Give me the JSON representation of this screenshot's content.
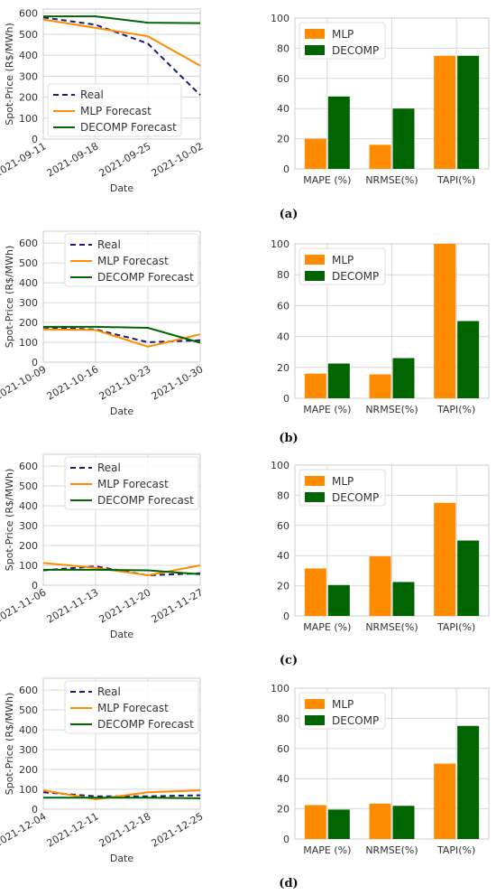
{
  "figure": {
    "colors": {
      "real": "#1a1a7a",
      "mlp": "#ff8c00",
      "decomp": "#006400",
      "grid": "#d9d9d9",
      "axis": "#cccccc",
      "text": "#333333"
    },
    "panels": [
      {
        "label": "(a)"
      },
      {
        "label": "(b)"
      },
      {
        "label": "(c)"
      },
      {
        "label": "(d)"
      }
    ]
  },
  "chart_data": [
    {
      "type": "line",
      "panel": "(a)",
      "ylabel": "Spot-Price (R$/MWh)",
      "xlabel": "Date",
      "x": [
        "2021-09-11",
        "2021-09-18",
        "2021-09-25",
        "2021-10-02"
      ],
      "ylim": [
        0,
        620
      ],
      "yticks": [
        0,
        100,
        200,
        300,
        400,
        500,
        600
      ],
      "legend_position": "lower-left",
      "series": [
        {
          "name": "Real",
          "style": "dashed",
          "color": "#1a1a7a",
          "values": [
            580,
            545,
            455,
            210
          ]
        },
        {
          "name": "MLP Forecast",
          "style": "solid",
          "color": "#ff8c00",
          "values": [
            570,
            530,
            490,
            350
          ]
        },
        {
          "name": "DECOMP Forecast",
          "style": "solid",
          "color": "#006400",
          "values": [
            585,
            585,
            555,
            553
          ]
        }
      ]
    },
    {
      "type": "bar",
      "panel": "(a)",
      "categories": [
        "MAPE (%)",
        "NRMSE(%)",
        "TAPI(%)"
      ],
      "ylim": [
        0,
        100
      ],
      "yticks": [
        0,
        20,
        40,
        60,
        80,
        100
      ],
      "legend_position": "upper-left",
      "series": [
        {
          "name": "MLP",
          "color": "#ff8c00",
          "values": [
            20,
            16,
            75
          ]
        },
        {
          "name": "DECOMP",
          "color": "#006400",
          "values": [
            48,
            40,
            75
          ]
        }
      ]
    },
    {
      "type": "line",
      "panel": "(b)",
      "ylabel": "Spot-Price (R$/MWh)",
      "xlabel": "Date",
      "x": [
        "2021-10-09",
        "2021-10-16",
        "2021-10-23",
        "2021-10-30"
      ],
      "ylim": [
        0,
        660
      ],
      "yticks": [
        0,
        100,
        200,
        300,
        400,
        500,
        600
      ],
      "legend_position": "upper-center",
      "series": [
        {
          "name": "Real",
          "style": "dashed",
          "color": "#1a1a7a",
          "values": [
            175,
            165,
            100,
            110
          ]
        },
        {
          "name": "MLP Forecast",
          "style": "solid",
          "color": "#ff8c00",
          "values": [
            165,
            162,
            78,
            140
          ]
        },
        {
          "name": "DECOMP Forecast",
          "style": "solid",
          "color": "#006400",
          "values": [
            178,
            178,
            173,
            98
          ]
        }
      ]
    },
    {
      "type": "bar",
      "panel": "(b)",
      "categories": [
        "MAPE (%)",
        "NRMSE(%)",
        "TAPI(%)"
      ],
      "ylim": [
        0,
        100
      ],
      "yticks": [
        0,
        20,
        40,
        60,
        80,
        100
      ],
      "legend_position": "upper-left",
      "series": [
        {
          "name": "MLP",
          "color": "#ff8c00",
          "values": [
            16,
            15.5,
            100
          ]
        },
        {
          "name": "DECOMP",
          "color": "#006400",
          "values": [
            22.5,
            26,
            50
          ]
        }
      ]
    },
    {
      "type": "line",
      "panel": "(c)",
      "ylabel": "Spot-Price (R$/MWh)",
      "xlabel": "Date",
      "x": [
        "2021-11-06",
        "2021-11-13",
        "2021-11-20",
        "2021-11-27"
      ],
      "ylim": [
        0,
        660
      ],
      "yticks": [
        0,
        100,
        200,
        300,
        400,
        500,
        600
      ],
      "legend_position": "upper-center",
      "series": [
        {
          "name": "Real",
          "style": "dashed",
          "color": "#1a1a7a",
          "values": [
            75,
            95,
            50,
            60
          ]
        },
        {
          "name": "MLP Forecast",
          "style": "solid",
          "color": "#ff8c00",
          "values": [
            112,
            88,
            50,
            100
          ]
        },
        {
          "name": "DECOMP Forecast",
          "style": "solid",
          "color": "#006400",
          "values": [
            78,
            78,
            75,
            55
          ]
        }
      ]
    },
    {
      "type": "bar",
      "panel": "(c)",
      "categories": [
        "MAPE (%)",
        "NRMSE(%)",
        "TAPI(%)"
      ],
      "ylim": [
        0,
        100
      ],
      "yticks": [
        0,
        20,
        40,
        60,
        80,
        100
      ],
      "legend_position": "upper-left",
      "series": [
        {
          "name": "MLP",
          "color": "#ff8c00",
          "values": [
            31.5,
            39.5,
            75
          ]
        },
        {
          "name": "DECOMP",
          "color": "#006400",
          "values": [
            20.5,
            22.5,
            50
          ]
        }
      ]
    },
    {
      "type": "line",
      "panel": "(d)",
      "ylabel": "Spot-Price (R$/MWh)",
      "xlabel": "Date",
      "x": [
        "2021-12-04",
        "2021-12-11",
        "2021-12-18",
        "2021-12-25"
      ],
      "ylim": [
        0,
        660
      ],
      "yticks": [
        0,
        100,
        200,
        300,
        400,
        500,
        600
      ],
      "legend_position": "upper-center",
      "series": [
        {
          "name": "Real",
          "style": "dashed",
          "color": "#1a1a7a",
          "values": [
            85,
            65,
            65,
            70
          ]
        },
        {
          "name": "MLP Forecast",
          "style": "solid",
          "color": "#ff8c00",
          "values": [
            95,
            50,
            85,
            95
          ]
        },
        {
          "name": "DECOMP Forecast",
          "style": "solid",
          "color": "#006400",
          "values": [
            58,
            58,
            58,
            55
          ]
        }
      ]
    },
    {
      "type": "bar",
      "panel": "(d)",
      "categories": [
        "MAPE (%)",
        "NRMSE(%)",
        "TAPI(%)"
      ],
      "ylim": [
        0,
        100
      ],
      "yticks": [
        0,
        20,
        40,
        60,
        80,
        100
      ],
      "legend_position": "upper-left",
      "series": [
        {
          "name": "MLP",
          "color": "#ff8c00",
          "values": [
            22.5,
            23.5,
            50
          ]
        },
        {
          "name": "DECOMP",
          "color": "#006400",
          "values": [
            19.5,
            22,
            75
          ]
        }
      ]
    }
  ]
}
